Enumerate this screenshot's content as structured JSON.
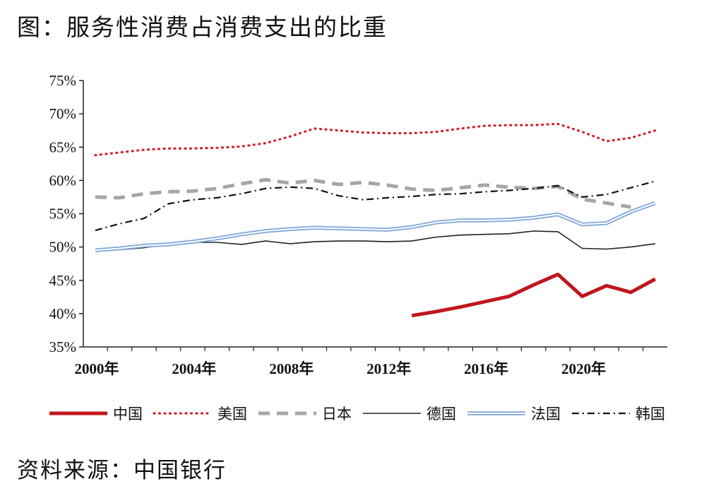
{
  "title": "图：服务性消费占消费支出的比重",
  "source": "资料来源：中国银行",
  "chart_data": {
    "type": "line",
    "xlabel": "",
    "ylabel": "",
    "ylim": [
      35,
      75
    ],
    "y_ticks": [
      "35%",
      "40%",
      "45%",
      "50%",
      "55%",
      "60%",
      "65%",
      "70%",
      "75%"
    ],
    "x_range": [
      2000,
      2023
    ],
    "x_ticks": [
      {
        "value": 2000,
        "label": "2000年"
      },
      {
        "value": 2004,
        "label": "2004年"
      },
      {
        "value": 2008,
        "label": "2008年"
      },
      {
        "value": 2012,
        "label": "2012年"
      },
      {
        "value": 2016,
        "label": "2016年"
      },
      {
        "value": 2020,
        "label": "2020年"
      }
    ],
    "grid": false,
    "legend": "bottom",
    "series": [
      {
        "name": "中国",
        "color": "#c0161d",
        "style": "thick-solid",
        "x": [
          2013,
          2014,
          2015,
          2016,
          2017,
          2018,
          2019,
          2020,
          2021,
          2022,
          2023
        ],
        "values": [
          39.7,
          40.3,
          41.0,
          41.8,
          42.6,
          44.3,
          45.9,
          42.6,
          44.2,
          43.2,
          45.2
        ]
      },
      {
        "name": "美国",
        "color": "#d0202a",
        "style": "dotted",
        "x": [
          2000,
          2001,
          2002,
          2003,
          2004,
          2005,
          2006,
          2007,
          2008,
          2009,
          2010,
          2011,
          2012,
          2013,
          2014,
          2015,
          2016,
          2017,
          2018,
          2019,
          2020,
          2021,
          2022,
          2023
        ],
        "values": [
          63.8,
          64.2,
          64.6,
          64.8,
          64.8,
          64.9,
          65.1,
          65.6,
          66.6,
          67.8,
          67.5,
          67.2,
          67.1,
          67.1,
          67.3,
          67.8,
          68.2,
          68.3,
          68.3,
          68.5,
          67.3,
          65.9,
          66.4,
          67.5
        ]
      },
      {
        "name": "日本",
        "color": "#a6a6a6",
        "style": "dashed",
        "x": [
          2000,
          2001,
          2002,
          2003,
          2004,
          2005,
          2006,
          2007,
          2008,
          2009,
          2010,
          2011,
          2012,
          2013,
          2014,
          2015,
          2016,
          2017,
          2018,
          2019,
          2020,
          2021,
          2022
        ],
        "values": [
          57.5,
          57.4,
          58.0,
          58.3,
          58.4,
          58.8,
          59.5,
          60.1,
          59.6,
          60.0,
          59.4,
          59.7,
          59.3,
          58.7,
          58.5,
          58.9,
          59.3,
          59.0,
          58.8,
          59.1,
          57.2,
          56.6,
          56.0
        ]
      },
      {
        "name": "德国",
        "color": "#222222",
        "style": "thin-solid",
        "x": [
          2000,
          2001,
          2002,
          2003,
          2004,
          2005,
          2006,
          2007,
          2008,
          2009,
          2010,
          2011,
          2012,
          2013,
          2014,
          2015,
          2016,
          2017,
          2018,
          2019,
          2020,
          2021,
          2022,
          2023
        ],
        "values": [
          49.5,
          49.6,
          49.9,
          50.4,
          50.7,
          50.7,
          50.4,
          50.9,
          50.5,
          50.8,
          50.9,
          50.9,
          50.8,
          50.9,
          51.5,
          51.8,
          51.9,
          52.0,
          52.4,
          52.3,
          49.8,
          49.7,
          50.0,
          50.5
        ]
      },
      {
        "name": "法国",
        "color": "#7da6d9",
        "style": "double",
        "x": [
          2000,
          2001,
          2002,
          2003,
          2004,
          2005,
          2006,
          2007,
          2008,
          2009,
          2010,
          2011,
          2012,
          2013,
          2014,
          2015,
          2016,
          2017,
          2018,
          2019,
          2020,
          2021,
          2022,
          2023
        ],
        "values": [
          49.5,
          49.8,
          50.2,
          50.4,
          50.8,
          51.3,
          51.9,
          52.4,
          52.7,
          52.9,
          52.8,
          52.7,
          52.6,
          53.0,
          53.7,
          54.0,
          54.0,
          54.1,
          54.4,
          54.9,
          53.4,
          53.6,
          55.3,
          56.6
        ]
      },
      {
        "name": "韩国",
        "color": "#111111",
        "style": "dash-dot",
        "x": [
          2000,
          2001,
          2002,
          2003,
          2004,
          2005,
          2006,
          2007,
          2008,
          2009,
          2010,
          2011,
          2012,
          2013,
          2014,
          2015,
          2016,
          2017,
          2018,
          2019,
          2020,
          2021,
          2022,
          2023
        ],
        "values": [
          52.5,
          53.5,
          54.3,
          56.5,
          57.1,
          57.4,
          58.0,
          58.8,
          59.0,
          58.8,
          57.7,
          57.1,
          57.4,
          57.6,
          57.9,
          58.0,
          58.3,
          58.5,
          58.8,
          59.2,
          57.5,
          57.9,
          58.9,
          59.9
        ]
      }
    ]
  }
}
